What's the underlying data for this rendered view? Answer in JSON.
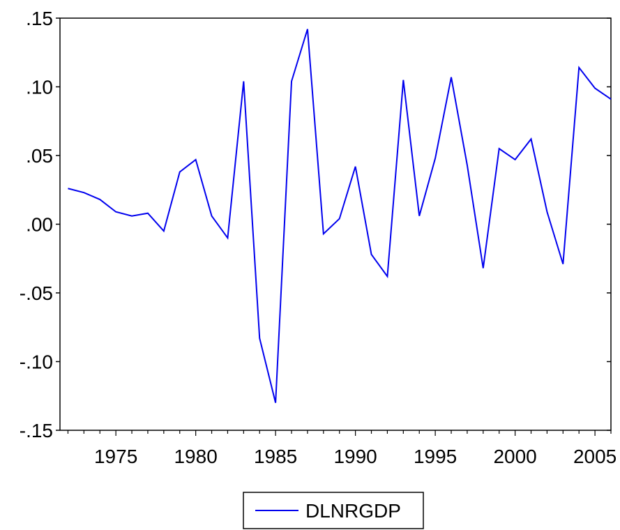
{
  "chart_data": {
    "type": "line",
    "title": "",
    "xlabel": "",
    "ylabel": "",
    "xlim": [
      1971.5,
      2006
    ],
    "ylim": [
      -0.15,
      0.15
    ],
    "grid": false,
    "legend_position": "bottom-center",
    "x_ticks": [
      1975,
      1980,
      1985,
      1990,
      1995,
      2000,
      2005
    ],
    "x_tick_labels": [
      "1975",
      "1980",
      "1985",
      "1990",
      "1995",
      "2000",
      "2005"
    ],
    "y_ticks": [
      -0.15,
      -0.1,
      -0.05,
      0.0,
      0.05,
      0.1,
      0.15
    ],
    "y_tick_labels": [
      "-.15",
      "-.10",
      "-.05",
      ".00",
      ".05",
      ".10",
      ".15"
    ],
    "series": [
      {
        "name": "DLNRGDP",
        "color": "#0000ee",
        "x": [
          1972,
          1973,
          1974,
          1975,
          1976,
          1977,
          1978,
          1979,
          1980,
          1981,
          1982,
          1983,
          1984,
          1985,
          1986,
          1987,
          1988,
          1989,
          1990,
          1991,
          1992,
          1993,
          1994,
          1995,
          1996,
          1997,
          1998,
          1999,
          2000,
          2001,
          2002,
          2003,
          2004,
          2005,
          2006
        ],
        "values": [
          0.026,
          0.023,
          0.018,
          0.009,
          0.006,
          0.008,
          -0.005,
          0.038,
          0.047,
          0.006,
          -0.01,
          0.104,
          -0.083,
          -0.13,
          0.104,
          0.142,
          -0.007,
          0.004,
          0.042,
          -0.022,
          -0.038,
          0.105,
          0.006,
          0.048,
          0.107,
          0.043,
          -0.032,
          0.055,
          0.047,
          0.062,
          0.009,
          -0.029,
          0.114,
          0.099,
          0.091
        ]
      }
    ]
  }
}
